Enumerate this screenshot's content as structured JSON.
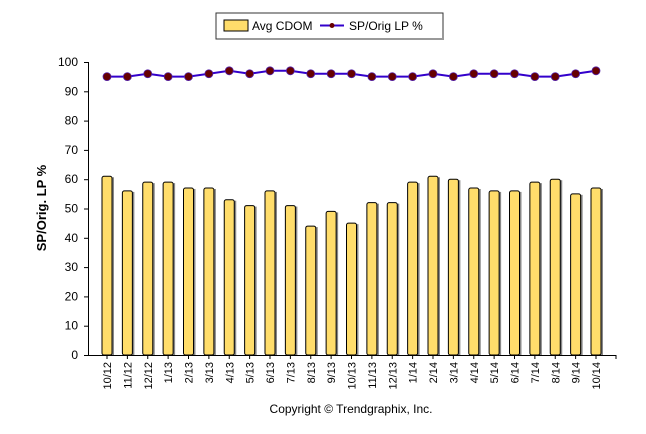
{
  "chart_data": {
    "type": "bar",
    "title": "",
    "xlabel": "",
    "ylabel": "SP/Orig. LP %",
    "ylim": [
      0,
      100
    ],
    "yticks": [
      0,
      10,
      20,
      30,
      40,
      50,
      60,
      70,
      80,
      90,
      100
    ],
    "grid": false,
    "legend_position": "top",
    "categories": [
      "10/12",
      "11/12",
      "12/12",
      "1/13",
      "2/13",
      "3/13",
      "4/13",
      "5/13",
      "6/13",
      "7/13",
      "8/13",
      "9/13",
      "10/13",
      "11/13",
      "12/13",
      "1/14",
      "2/14",
      "3/14",
      "4/14",
      "5/14",
      "6/14",
      "7/14",
      "8/14",
      "9/14",
      "10/14"
    ],
    "series": [
      {
        "name": "Avg CDOM",
        "type": "bar",
        "color": "#FFDD6B",
        "values": [
          61,
          56,
          59,
          59,
          57,
          57,
          53,
          51,
          56,
          51,
          44,
          49,
          45,
          52,
          52,
          59,
          61,
          60,
          57,
          56,
          56,
          59,
          60,
          55,
          57
        ]
      },
      {
        "name": "SP/Orig LP %",
        "type": "line",
        "color": "#3300CC",
        "marker_color": "#660000",
        "values": [
          95,
          95,
          96,
          95,
          95,
          96,
          97,
          96,
          97,
          97,
          96,
          96,
          96,
          95,
          95,
          95,
          96,
          95,
          96,
          96,
          96,
          95,
          95,
          96,
          97
        ]
      }
    ]
  },
  "footer": {
    "copyright": "Copyright © Trendgraphix, Inc."
  }
}
